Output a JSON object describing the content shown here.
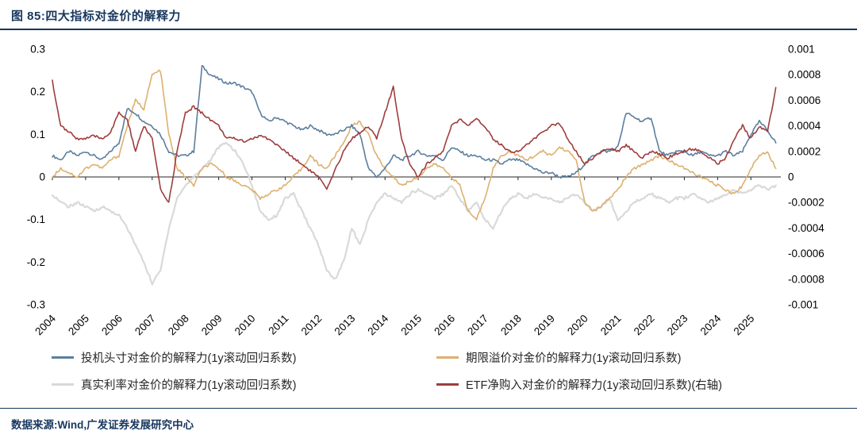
{
  "header": {
    "title": "图 85:四大指标对金价的解释力"
  },
  "footer": {
    "source": "数据来源:Wind,广发证券发展研究中心"
  },
  "chart_data": {
    "type": "line",
    "title": "四大指标对金价的解释力",
    "x_start": 2004,
    "x_step": 0.25,
    "x_tick_labels": [
      "2004",
      "2005",
      "2006",
      "2007",
      "2008",
      "2009",
      "2010",
      "2011",
      "2012",
      "2013",
      "2014",
      "2015",
      "2016",
      "2017",
      "2018",
      "2019",
      "2020",
      "2021",
      "2022",
      "2023",
      "2024",
      "2025"
    ],
    "left_axis": {
      "min": -0.3,
      "max": 0.3,
      "tick_labels": [
        "0.3",
        "0.2",
        "0.1",
        "0",
        "-0.1",
        "-0.2",
        "-0.3"
      ]
    },
    "right_axis": {
      "min": -0.001,
      "max": 0.001,
      "tick_labels": [
        "0.001",
        "0.0008",
        "0.0006",
        "0.0004",
        "0.0002",
        "0",
        "-0.0002",
        "-0.0004",
        "-0.0006",
        "-0.0008",
        "-0.001"
      ]
    },
    "legend_position": "bottom",
    "grid": false,
    "series": [
      {
        "id": "speculative-positions",
        "label": "投机头寸对金价的解释力(1y滚动回归系数)",
        "color": "#5B7E9E",
        "axis": "left",
        "values": [
          0.05,
          0.04,
          0.06,
          0.05,
          0.06,
          0.05,
          0.04,
          0.06,
          0.08,
          0.16,
          0.15,
          0.13,
          0.12,
          0.1,
          0.06,
          0.05,
          0.05,
          0.06,
          0.26,
          0.24,
          0.23,
          0.22,
          0.22,
          0.21,
          0.2,
          0.15,
          0.13,
          0.14,
          0.13,
          0.12,
          0.11,
          0.12,
          0.11,
          0.1,
          0.1,
          0.11,
          0.12,
          0.1,
          0.02,
          0.0,
          0.02,
          0.05,
          0.04,
          0.05,
          0.06,
          0.05,
          0.05,
          0.04,
          0.07,
          0.06,
          0.05,
          0.05,
          0.04,
          0.04,
          0.03,
          0.04,
          0.04,
          0.03,
          0.02,
          0.01,
          0.01,
          0.0,
          0.0,
          0.01,
          0.03,
          0.05,
          0.06,
          0.06,
          0.07,
          0.15,
          0.14,
          0.13,
          0.14,
          0.06,
          0.05,
          0.06,
          0.06,
          0.05,
          0.06,
          0.05,
          0.05,
          0.06,
          0.05,
          0.06,
          0.1,
          0.13,
          0.11,
          0.08
        ]
      },
      {
        "id": "term-premium",
        "label": "期限溢价对金价的解释力(1y滚动回归系数)",
        "color": "#DDB06F",
        "axis": "left",
        "values": [
          0.0,
          0.02,
          0.01,
          0.0,
          0.02,
          0.03,
          0.02,
          0.04,
          0.05,
          0.12,
          0.18,
          0.16,
          0.24,
          0.25,
          0.1,
          0.02,
          0.0,
          -0.02,
          0.02,
          0.03,
          0.02,
          0.0,
          -0.01,
          -0.02,
          -0.03,
          -0.05,
          -0.04,
          -0.03,
          -0.02,
          0.0,
          0.02,
          0.05,
          0.03,
          0.02,
          0.05,
          0.08,
          0.12,
          0.13,
          0.1,
          0.05,
          0.02,
          0.0,
          -0.02,
          -0.01,
          0.0,
          0.02,
          0.03,
          0.02,
          0.0,
          -0.02,
          -0.08,
          -0.1,
          -0.05,
          0.02,
          0.05,
          0.06,
          0.05,
          0.04,
          0.05,
          0.06,
          0.05,
          0.07,
          0.06,
          0.04,
          -0.06,
          -0.08,
          -0.07,
          -0.05,
          -0.03,
          0.0,
          0.02,
          0.03,
          0.04,
          0.05,
          0.04,
          0.03,
          0.02,
          0.01,
          0.0,
          -0.01,
          -0.02,
          -0.03,
          -0.04,
          -0.02,
          0.02,
          0.05,
          0.06,
          0.02
        ]
      },
      {
        "id": "real-rates",
        "label": "真实利率对金价的解释力(1y滚动回归系数)",
        "color": "#D9D9D9",
        "axis": "left",
        "values": [
          -0.04,
          -0.06,
          -0.07,
          -0.06,
          -0.07,
          -0.08,
          -0.07,
          -0.08,
          -0.09,
          -0.12,
          -0.16,
          -0.2,
          -0.25,
          -0.22,
          -0.12,
          -0.05,
          -0.02,
          0.0,
          0.02,
          0.04,
          0.07,
          0.08,
          0.06,
          0.03,
          -0.02,
          -0.08,
          -0.1,
          -0.09,
          -0.05,
          -0.04,
          -0.08,
          -0.12,
          -0.16,
          -0.22,
          -0.24,
          -0.2,
          -0.12,
          -0.16,
          -0.1,
          -0.06,
          -0.04,
          -0.05,
          -0.06,
          -0.04,
          -0.03,
          -0.04,
          -0.05,
          -0.04,
          -0.02,
          -0.05,
          -0.08,
          -0.06,
          -0.1,
          -0.12,
          -0.08,
          -0.05,
          -0.04,
          -0.05,
          -0.04,
          -0.05,
          -0.05,
          -0.06,
          -0.05,
          -0.04,
          -0.06,
          -0.08,
          -0.07,
          -0.05,
          -0.1,
          -0.08,
          -0.06,
          -0.05,
          -0.04,
          -0.05,
          -0.06,
          -0.05,
          -0.05,
          -0.04,
          -0.05,
          -0.06,
          -0.05,
          -0.04,
          -0.03,
          -0.04,
          -0.03,
          -0.02,
          -0.03,
          -0.02
        ]
      },
      {
        "id": "etf-net-purchases",
        "label": "ETF净购入对金价的解释力(1y滚动回归系数)(右轴)",
        "color": "#9E3D3D",
        "axis": "right",
        "values": [
          0.00075,
          0.0004,
          0.00035,
          0.0003,
          0.0003,
          0.00032,
          0.0003,
          0.00035,
          0.0005,
          0.00045,
          0.0002,
          0.0004,
          0.0003,
          -0.0001,
          -0.0002,
          0.0002,
          0.0005,
          0.00055,
          0.0005,
          0.00045,
          0.0004,
          0.0003,
          0.0003,
          0.00028,
          0.0003,
          0.00032,
          0.0003,
          0.00025,
          0.0002,
          0.00015,
          0.0001,
          5e-05,
          0.0,
          -0.0001,
          5e-05,
          0.0002,
          0.0003,
          0.00035,
          0.0004,
          0.0003,
          0.0005,
          0.0007,
          0.0003,
          0.0001,
          0.0,
          0.0001,
          0.00015,
          0.0002,
          0.0004,
          0.00045,
          0.0004,
          0.00045,
          0.0004,
          0.0003,
          0.00025,
          0.0002,
          0.0002,
          0.00025,
          0.0003,
          0.00035,
          0.0004,
          0.00042,
          0.0003,
          0.0002,
          0.0001,
          0.00015,
          0.0002,
          0.00022,
          0.0002,
          0.00025,
          0.0002,
          0.00015,
          0.0002,
          0.00018,
          0.00015,
          0.00018,
          0.0002,
          0.00022,
          0.0002,
          0.00015,
          0.0001,
          0.00015,
          0.0003,
          0.0004,
          0.0003,
          0.0004,
          0.00035,
          0.0007
        ]
      }
    ]
  }
}
